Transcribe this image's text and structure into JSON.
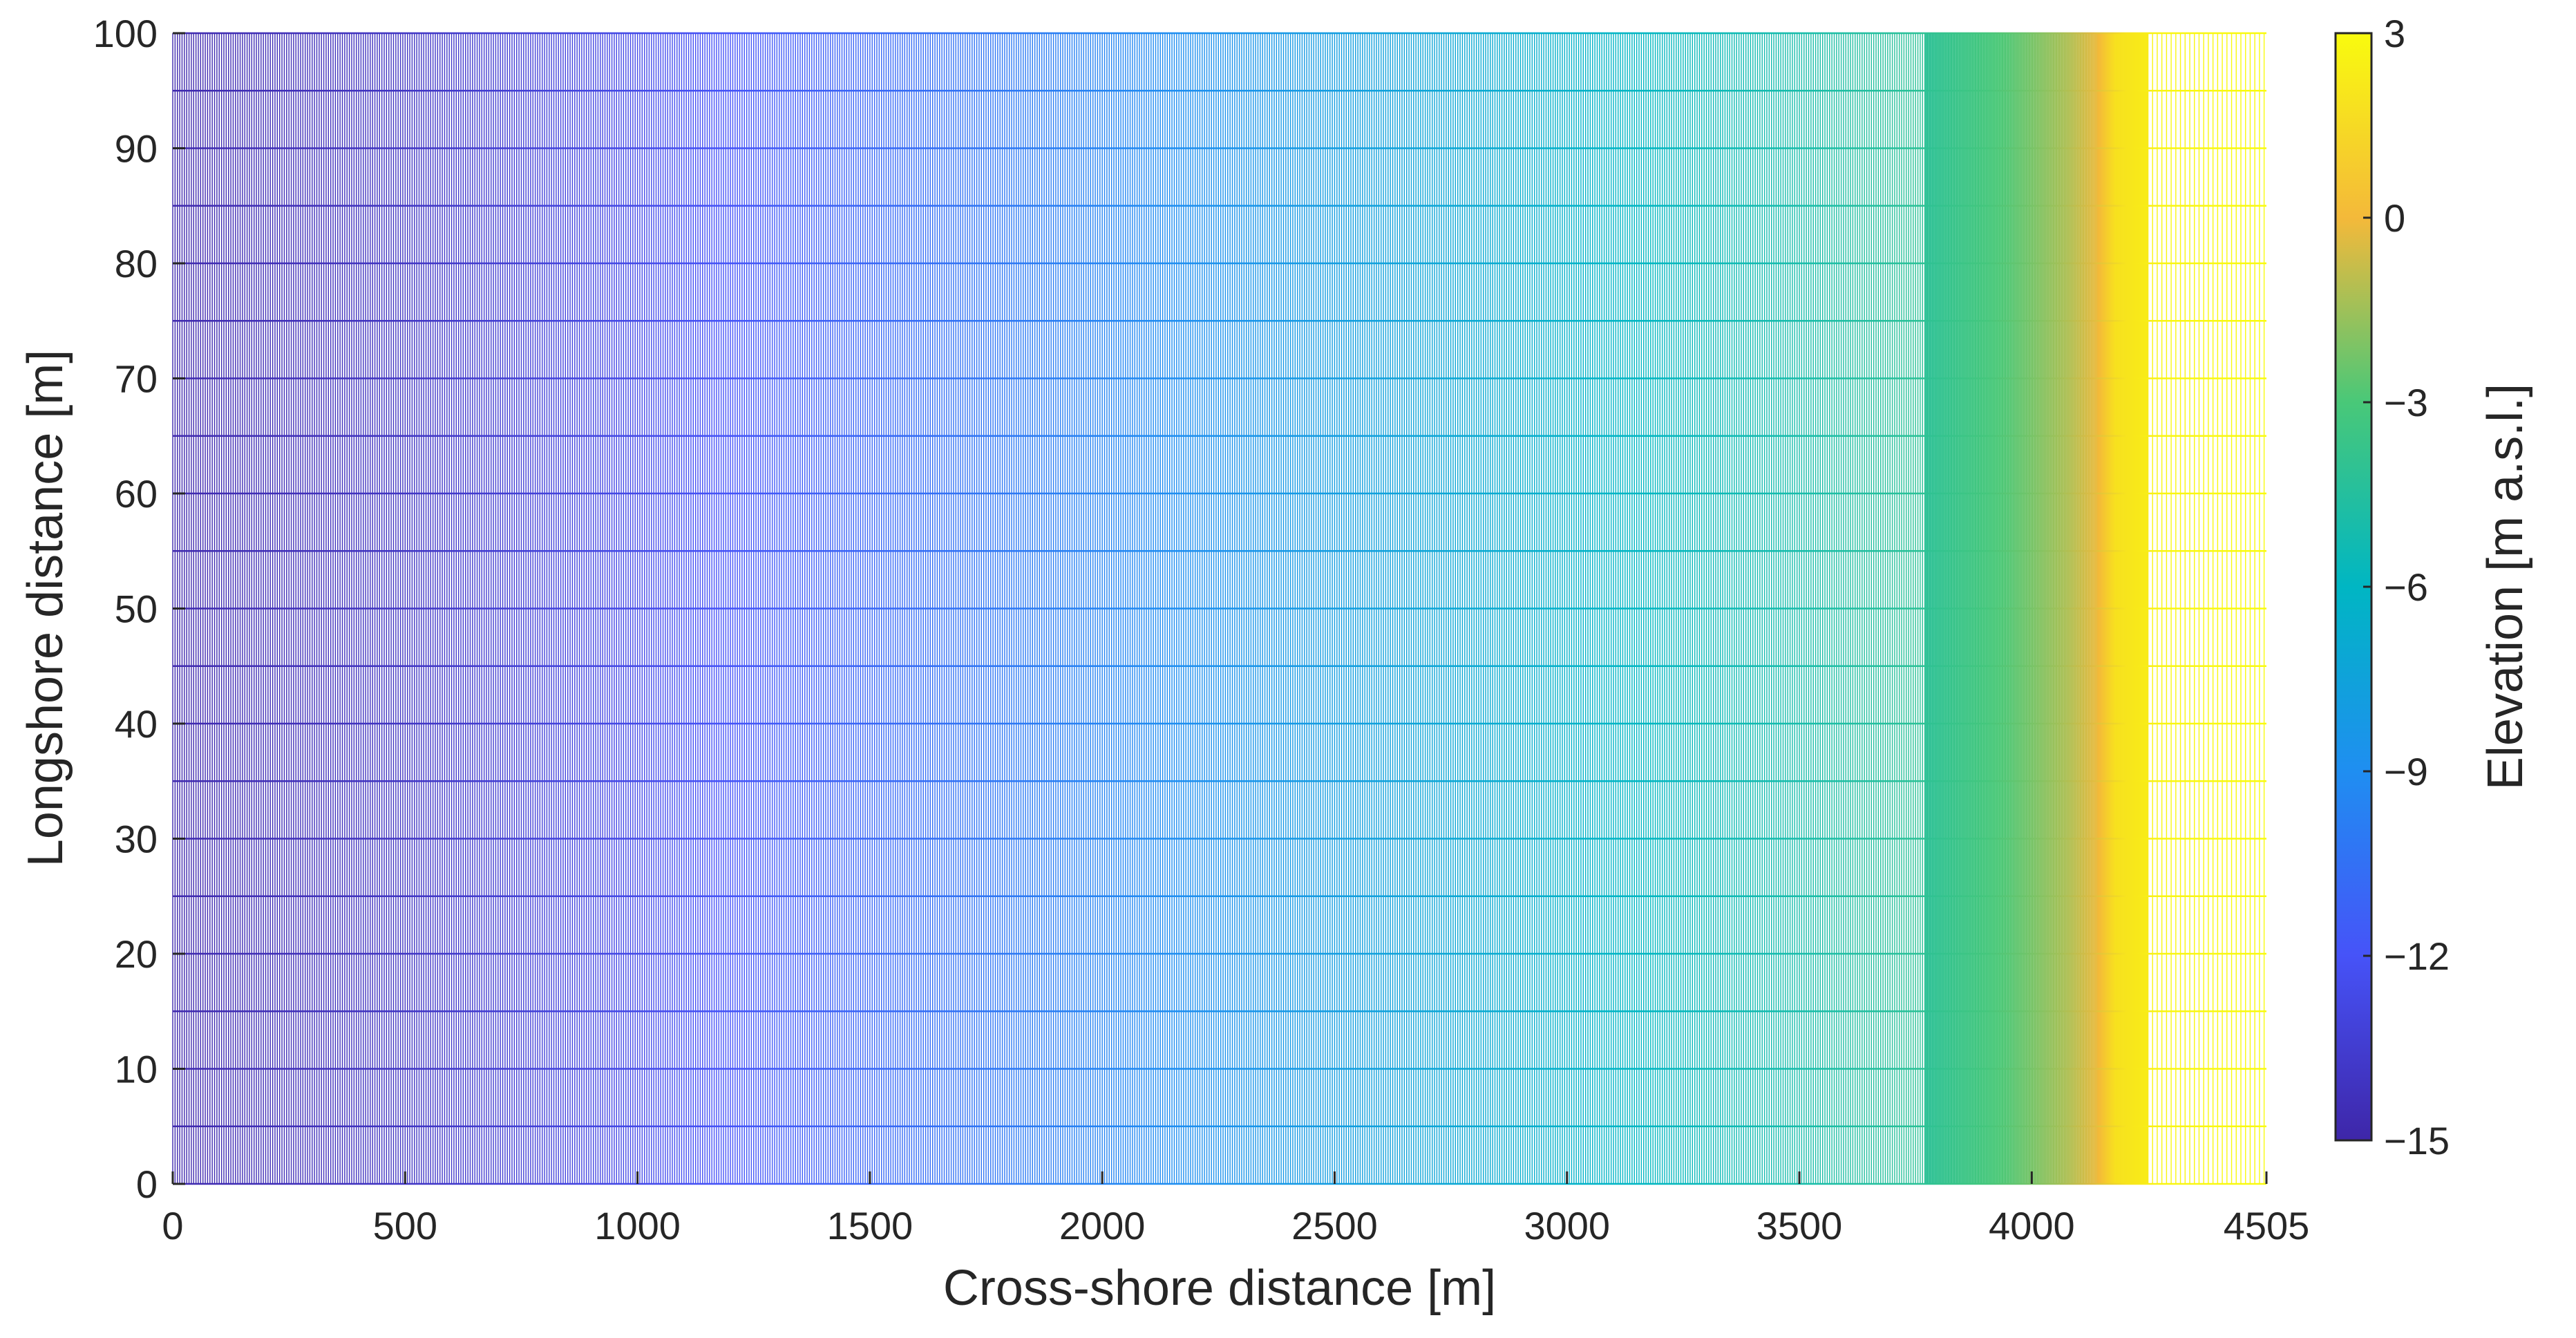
{
  "chart_data": {
    "type": "heatmap",
    "subtype": "curvilinear-grid-mesh",
    "title": "",
    "xlabel": "Cross-shore distance [m]",
    "ylabel": "Longshore distance [m]",
    "xlim": [
      0,
      4505
    ],
    "ylim": [
      0,
      100
    ],
    "xticks": [
      0,
      500,
      1000,
      1500,
      2000,
      2500,
      3000,
      3500,
      4000,
      4505
    ],
    "xtick_labels": [
      "0",
      "500",
      "1000",
      "1500",
      "2000",
      "2500",
      "3000",
      "3500",
      "4000",
      "4505"
    ],
    "yticks": [
      0,
      10,
      20,
      30,
      40,
      50,
      60,
      70,
      80,
      90,
      100
    ],
    "ytick_labels": [
      "0",
      "10",
      "20",
      "30",
      "40",
      "50",
      "60",
      "70",
      "80",
      "90",
      "100"
    ],
    "grid_longshore_spacing": 5,
    "grid": false,
    "colorbar": {
      "label": "Elevation [m a.s.l.]",
      "range": [
        -15,
        3
      ],
      "ticks": [
        -15,
        -12,
        -9,
        -6,
        -3,
        0,
        3
      ],
      "tick_labels": [
        "−15",
        "−12",
        "−9",
        "−6",
        "−3",
        "0",
        "3"
      ],
      "colormap": "parula",
      "position": "right"
    },
    "elevation_profile": {
      "x": [
        0,
        500,
        1000,
        1500,
        2000,
        2500,
        3000,
        3500,
        3770,
        3950,
        4080,
        4140,
        4180,
        4250,
        4255,
        4505
      ],
      "elevation": [
        -14.8,
        -14.0,
        -12.6,
        -11.0,
        -9.5,
        -7.9,
        -6.4,
        -5.0,
        -4.2,
        -2.8,
        -1.2,
        -0.2,
        1.8,
        2.3,
        2.7,
        3.0
      ]
    },
    "cell_width_zones": [
      {
        "x_start": 0,
        "x_end": 3770,
        "cell_width_m": 5
      },
      {
        "x_start": 3770,
        "x_end": 4140,
        "cell_width_m": 2
      },
      {
        "x_start": 4140,
        "x_end": 4250,
        "cell_width_m": 1
      },
      {
        "x_start": 4250,
        "x_end": 4505,
        "cell_width_m": 10
      }
    ]
  }
}
